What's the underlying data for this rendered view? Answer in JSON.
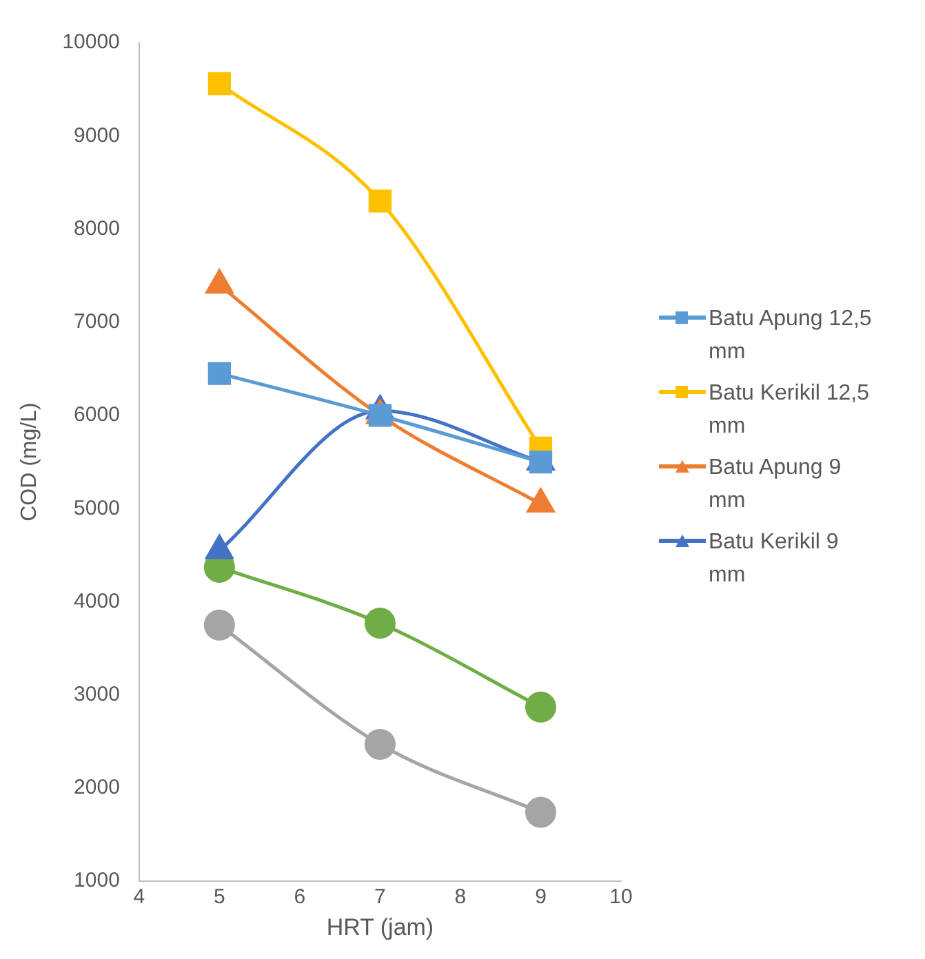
{
  "chart_data": {
    "type": "line",
    "xlabel": "HRT (jam)",
    "ylabel": "COD (mg/L)",
    "x": [
      5,
      7,
      9
    ],
    "xlim": [
      4,
      10
    ],
    "xticks": [
      4,
      5,
      6,
      7,
      8,
      9,
      10
    ],
    "ylim": [
      1000,
      10000
    ],
    "yticks": [
      1000,
      2000,
      3000,
      4000,
      5000,
      6000,
      7000,
      8000,
      9000,
      10000
    ],
    "grid": false,
    "legend": "right",
    "line_style": "solid",
    "series": [
      {
        "name": "Batu Apung 12,5 mm",
        "color": "#5b9bd5",
        "marker": "square",
        "values": [
          6450,
          6000,
          5500
        ]
      },
      {
        "name": "Batu Kerikil 12,5 mm",
        "color": "#ffc000",
        "marker": "square",
        "values": [
          9560,
          8300,
          5650
        ]
      },
      {
        "name": "Batu Apung 9 mm",
        "color": "#ed7d31",
        "marker": "triangle",
        "values": [
          7400,
          6000,
          5050
        ]
      },
      {
        "name": "Batu Kerikil 9 mm",
        "color": "#4472c4",
        "marker": "triangle",
        "values": [
          4550,
          6050,
          5500
        ]
      },
      {
        "color": "#70ad47",
        "marker": "circle",
        "values": [
          4370,
          3770,
          2870
        ]
      },
      {
        "color": "#a5a5a5",
        "marker": "circle",
        "values": [
          3750,
          2470,
          1740
        ]
      }
    ]
  }
}
